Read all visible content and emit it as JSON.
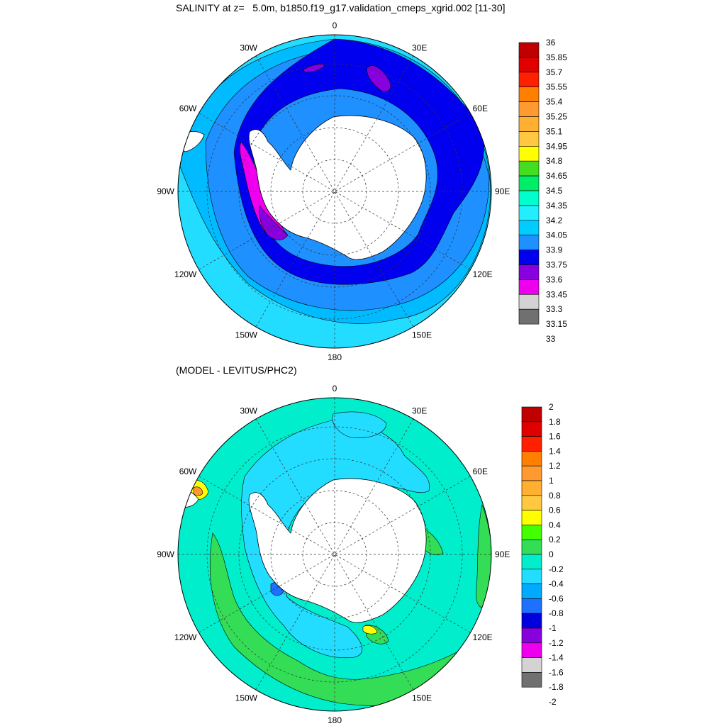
{
  "top": {
    "title": "SALINITY at z=   5.0m, b1850.f19_g17.validation_cmeps_xgrid.002 [11-30]",
    "colorbar": {
      "labels": [
        "36",
        "35.85",
        "35.7",
        "35.55",
        "35.4",
        "35.25",
        "35.1",
        "34.95",
        "34.8",
        "34.65",
        "34.5",
        "34.35",
        "34.2",
        "34.05",
        "33.9",
        "33.75",
        "33.6",
        "33.45",
        "33.3",
        "33.15",
        "33"
      ],
      "colors": [
        "#c00000",
        "#e00000",
        "#ff2000",
        "#ff8000",
        "#ff9a30",
        "#ffb030",
        "#ffc840",
        "#ffff00",
        "#44dd22",
        "#00ee66",
        "#00ffcc",
        "#22eeff",
        "#00ccff",
        "#1e90ff",
        "#0000ee",
        "#8800dd",
        "#ee00ee",
        "#d3d3d3",
        "#707070"
      ]
    }
  },
  "bottom": {
    "title": "(MODEL - LEVITUS/PHC2)",
    "colorbar": {
      "labels": [
        "2",
        "1.8",
        "1.6",
        "1.4",
        "1.2",
        "1",
        "0.8",
        "0.6",
        "0.4",
        "0.2",
        "0",
        "-0.2",
        "-0.4",
        "-0.6",
        "-0.8",
        "-1",
        "-1.2",
        "-1.4",
        "-1.6",
        "-1.8",
        "-2"
      ],
      "colors": [
        "#c00000",
        "#e00000",
        "#ff2000",
        "#ff8000",
        "#ff9a30",
        "#ffb030",
        "#ffc840",
        "#ffff00",
        "#44ff00",
        "#33dd55",
        "#00eecc",
        "#22ddff",
        "#00aaff",
        "#1e70ff",
        "#0000dd",
        "#8800dd",
        "#ee00ee",
        "#d3d3d3",
        "#707070"
      ]
    }
  },
  "lon_labels": [
    "0",
    "30E",
    "60E",
    "90E",
    "120E",
    "150E",
    "180",
    "150W",
    "120W",
    "90W",
    "60W",
    "30W"
  ],
  "colors": {
    "land": "#ffffff",
    "top_ocean_outer": "#22ddff",
    "top_ocean_mid": "#00bbff",
    "top_blue_ring": "#1e90ff",
    "top_dark_ring": "#0000ee",
    "top_purple": "#8800dd",
    "top_magenta": "#ee00ee",
    "bottom_ocean": "#00eecc",
    "bottom_light": "#22ddff",
    "bottom_green": "#33dd55"
  }
}
